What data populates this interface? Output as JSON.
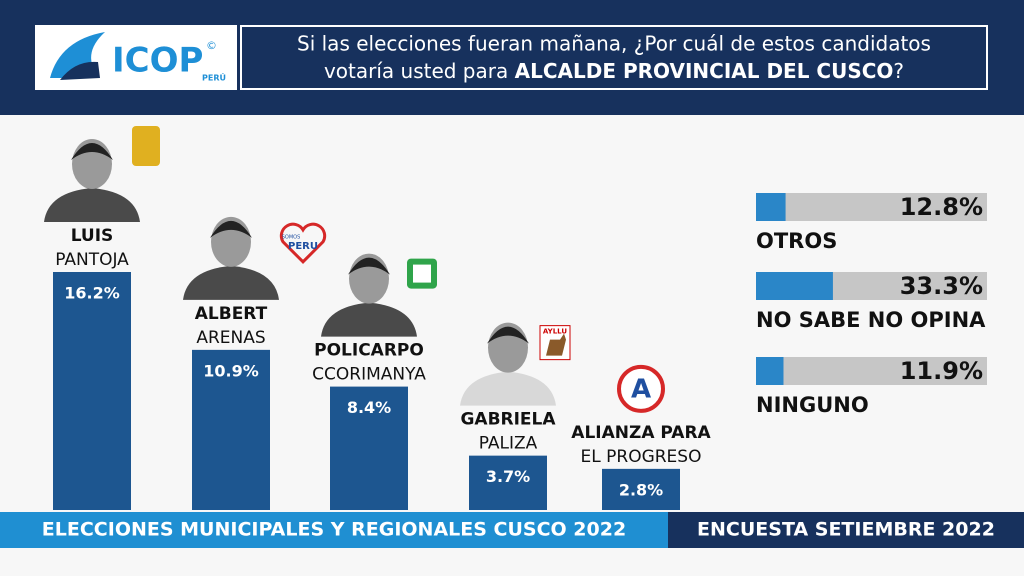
{
  "header": {
    "logo": "ICOP",
    "logo_sub": "PERÚ",
    "logo_mark": "©",
    "question": [
      "Si las elecciones fueran mañana, ¿Por cuál de estos candidatos",
      "votaría usted para ",
      "ALCALDE PROVINCIAL DEL CUSCO",
      "?"
    ]
  },
  "chart_data": [
    {
      "type": "bar",
      "categories": [
        "LUIS",
        "ALBERT",
        "POLICARPO",
        "GABRIELA",
        "ALIANZA PARA"
      ],
      "category_sublabels": [
        "PANTOJA",
        "ARENAS",
        "CCORIMANYA",
        "PALIZA",
        "EL PROGRESO"
      ],
      "values": [
        16.2,
        10.9,
        8.4,
        3.7,
        2.8
      ],
      "value_labels": [
        "16.2%",
        "10.9%",
        "8.4%",
        "3.7%",
        "2.8%"
      ],
      "party_marks": [
        null,
        [
          "SOMOS",
          "PERU"
        ],
        null,
        [
          "AYLLU"
        ],
        [
          "A"
        ]
      ],
      "color": "#1d5690"
    },
    {
      "type": "hbar",
      "categories": [
        "OTROS",
        "NO SABE NO OPINA",
        "NINGUNO"
      ],
      "values": [
        12.8,
        33.3,
        11.9
      ],
      "value_labels": [
        "12.8%",
        "33.3%",
        "11.9%"
      ],
      "xlim": [
        0,
        100
      ],
      "color": "#2a86c8",
      "track_color": "#c6c6c6"
    }
  ],
  "footer": {
    "left": "ELECCIONES MUNICIPALES Y REGIONALES CUSCO 2022",
    "right": "ENCUESTA SETIEMBRE 2022"
  }
}
